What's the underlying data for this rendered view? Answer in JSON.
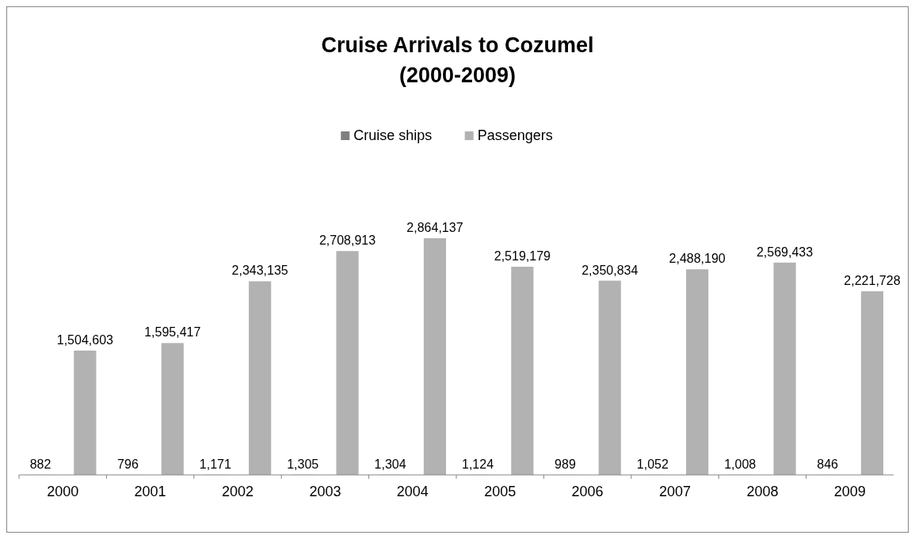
{
  "chart_data": {
    "type": "bar",
    "title": "Cruise Arrivals to Cozumel",
    "subtitle": "(2000-2009)",
    "categories": [
      "2000",
      "2001",
      "2002",
      "2003",
      "2004",
      "2005",
      "2006",
      "2007",
      "2008",
      "2009"
    ],
    "series": [
      {
        "name": "Cruise ships",
        "color": "#7f7f7f",
        "values": [
          882,
          796,
          1171,
          1305,
          1304,
          1124,
          989,
          1052,
          1008,
          846
        ],
        "value_labels": [
          "882",
          "796",
          "1,171",
          "1,305",
          "1,304",
          "1,124",
          "989",
          "1,052",
          "1,008",
          "846"
        ]
      },
      {
        "name": "Passengers",
        "color": "#b2b2b2",
        "values": [
          1504603,
          1595417,
          2343135,
          2708913,
          2864137,
          2519179,
          2350834,
          2488190,
          2569433,
          2221728
        ],
        "value_labels": [
          "1,504,603",
          "1,595,417",
          "2,343,135",
          "2,708,913",
          "2,864,137",
          "2,519,179",
          "2,350,834",
          "2,488,190",
          "2,569,433",
          "2,221,728"
        ]
      }
    ],
    "legend": "top"
  }
}
